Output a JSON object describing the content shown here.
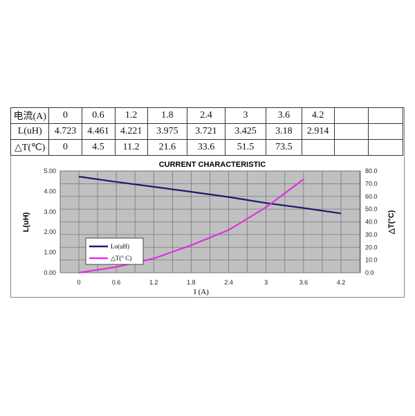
{
  "table": {
    "rows": [
      {
        "label": "电流(A)",
        "cells": [
          "0",
          "0.6",
          "1.2",
          "1.8",
          "2.4",
          "3",
          "3.6",
          "4.2",
          ""
        ]
      },
      {
        "label": "L(uH)",
        "cells": [
          "4.723",
          "4.461",
          "4.221",
          "3.975",
          "3.721",
          "3.425",
          "3.18",
          "2.914",
          ""
        ]
      },
      {
        "label": "△T(℃)",
        "cells": [
          "0",
          "4.5",
          "11.2",
          "21.6",
          "33.6",
          "51.5",
          "73.5",
          "",
          ""
        ]
      }
    ]
  },
  "chart_data": {
    "type": "line",
    "title": "CURRENT CHARACTERISTIC",
    "xlabel": "I (A)",
    "ylabel": "L(uH)",
    "y2label": "△T(°C)",
    "x": [
      0,
      0.6,
      1.2,
      1.8,
      2.4,
      3,
      3.6,
      4.2
    ],
    "x_ticks": [
      "0",
      "0.6",
      "1.2",
      "1.8",
      "2.4",
      "3",
      "3.6",
      "4.2"
    ],
    "y_ticks": [
      "0.00",
      "1.00",
      "2.00",
      "3.00",
      "4.00",
      "5.00"
    ],
    "y2_ticks": [
      "0.0",
      "10.0",
      "20.0",
      "30.0",
      "40.0",
      "50.0",
      "60.0",
      "70.0",
      "80.0"
    ],
    "ylim": [
      0,
      5
    ],
    "y2lim": [
      0,
      80
    ],
    "grid": true,
    "plot_background": "#c0c0c0",
    "legend_position": "lower-left",
    "series": [
      {
        "name": "Lo(uH)",
        "axis": "left",
        "color": "#1a1a6e",
        "values": [
          4.723,
          4.461,
          4.221,
          3.975,
          3.721,
          3.425,
          3.18,
          2.914
        ]
      },
      {
        "name": "△T(° C)",
        "axis": "right",
        "color": "#e030e0",
        "values": [
          0,
          4.5,
          11.2,
          21.6,
          33.6,
          51.5,
          73.5,
          null
        ]
      }
    ]
  }
}
